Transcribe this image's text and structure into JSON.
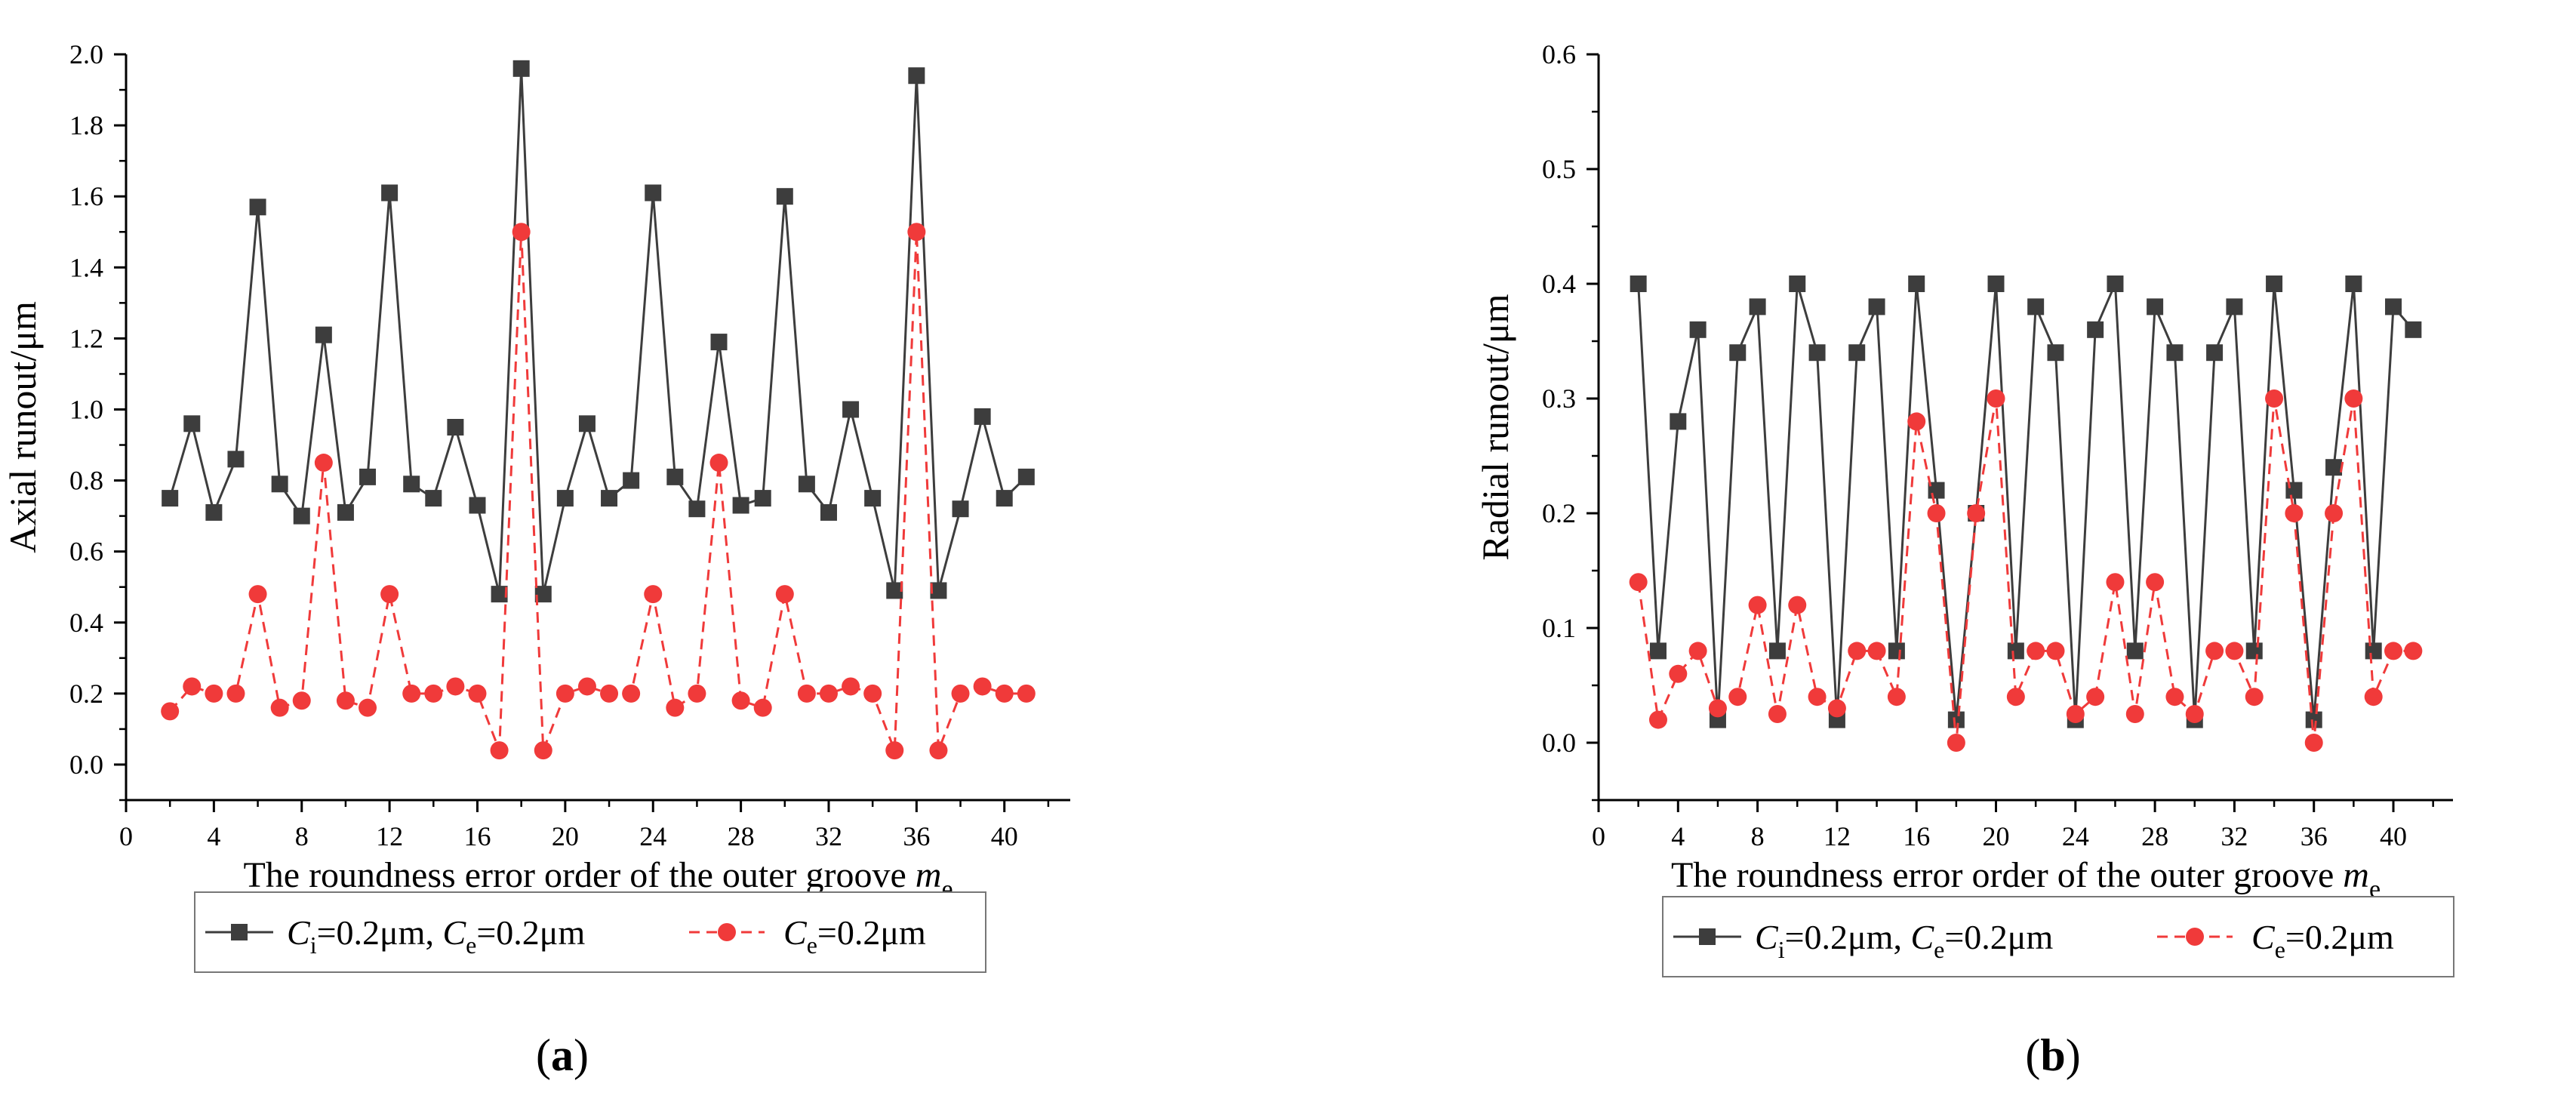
{
  "panel_labels": [
    "(a)",
    "(b)"
  ],
  "legend": {
    "series1_parts": [
      "C",
      "i",
      "=0.2μm, ",
      "C",
      "e",
      "=0.2μm"
    ],
    "series2_parts": [
      "C",
      "e",
      "=0.2μm"
    ]
  },
  "colors": {
    "series1": "#3d3d3d",
    "series2": "#f03a3a",
    "axis": "#000000"
  },
  "chart_data": [
    {
      "type": "line",
      "panel": "(a)",
      "xlabel": "The roundness error order of the outer groove",
      "xlabel_var": "m",
      "xlabel_sub": "e",
      "ylabel": "Axial runout/μm",
      "xlim": [
        0,
        43
      ],
      "ylim": [
        -0.1,
        2.0
      ],
      "xticks": [
        0,
        4,
        8,
        12,
        16,
        20,
        24,
        28,
        32,
        36,
        40
      ],
      "yticks": [
        0.0,
        0.2,
        0.4,
        0.6,
        0.8,
        1.0,
        1.2,
        1.4,
        1.6,
        1.8,
        2.0
      ],
      "ytick_labels": [
        "0.0",
        "0.2",
        "0.4",
        "0.6",
        "0.8",
        "1.0",
        "1.2",
        "1.4",
        "1.6",
        "1.8",
        "2.0"
      ],
      "x": [
        2,
        3,
        4,
        5,
        6,
        7,
        8,
        9,
        10,
        11,
        12,
        13,
        14,
        15,
        16,
        17,
        18,
        19,
        20,
        21,
        22,
        23,
        24,
        25,
        26,
        27,
        28,
        29,
        30,
        31,
        32,
        33,
        34,
        35,
        36,
        37,
        38,
        39,
        40,
        41
      ],
      "series": [
        {
          "values": [
            0.75,
            0.96,
            0.71,
            0.86,
            1.57,
            0.79,
            0.7,
            1.21,
            0.71,
            0.81,
            1.61,
            0.79,
            0.75,
            0.95,
            0.73,
            0.48,
            1.96,
            0.48,
            0.75,
            0.96,
            0.75,
            0.8,
            1.61,
            0.81,
            0.72,
            1.19,
            0.73,
            0.75,
            1.6,
            0.79,
            0.71,
            1.0,
            0.75,
            0.49,
            1.94,
            0.49,
            0.72,
            0.98,
            0.75,
            0.81
          ]
        },
        {
          "values": [
            0.15,
            0.22,
            0.2,
            0.2,
            0.48,
            0.16,
            0.18,
            0.85,
            0.18,
            0.16,
            0.48,
            0.2,
            0.2,
            0.22,
            0.2,
            0.04,
            1.5,
            0.04,
            0.2,
            0.22,
            0.2,
            0.2,
            0.48,
            0.16,
            0.2,
            0.85,
            0.18,
            0.16,
            0.48,
            0.2,
            0.2,
            0.22,
            0.2,
            0.04,
            1.5,
            0.04,
            0.2,
            0.22,
            0.2,
            0.2
          ]
        }
      ]
    },
    {
      "type": "line",
      "panel": "(b)",
      "xlabel": "The roundness error order of the outer groove",
      "xlabel_var": "m",
      "xlabel_sub": "e",
      "ylabel": "Radial runout/μm",
      "xlim": [
        0,
        43
      ],
      "ylim": [
        -0.05,
        0.6
      ],
      "xticks": [
        0,
        4,
        8,
        12,
        16,
        20,
        24,
        28,
        32,
        36,
        40
      ],
      "yticks": [
        0.0,
        0.1,
        0.2,
        0.3,
        0.4,
        0.5,
        0.6
      ],
      "ytick_labels": [
        "0.0",
        "0.1",
        "0.2",
        "0.3",
        "0.4",
        "0.5",
        "0.6"
      ],
      "x": [
        2,
        3,
        4,
        5,
        6,
        7,
        8,
        9,
        10,
        11,
        12,
        13,
        14,
        15,
        16,
        17,
        18,
        19,
        20,
        21,
        22,
        23,
        24,
        25,
        26,
        27,
        28,
        29,
        30,
        31,
        32,
        33,
        34,
        35,
        36,
        37,
        38,
        39,
        40,
        41
      ],
      "series": [
        {
          "values": [
            0.4,
            0.08,
            0.28,
            0.36,
            0.02,
            0.34,
            0.38,
            0.08,
            0.4,
            0.34,
            0.02,
            0.34,
            0.38,
            0.08,
            0.4,
            0.22,
            0.02,
            0.2,
            0.4,
            0.08,
            0.38,
            0.34,
            0.02,
            0.36,
            0.4,
            0.08,
            0.38,
            0.34,
            0.02,
            0.34,
            0.38,
            0.08,
            0.4,
            0.22,
            0.02,
            0.24,
            0.4,
            0.08,
            0.38,
            0.36
          ]
        },
        {
          "values": [
            0.14,
            0.02,
            0.06,
            0.08,
            0.03,
            0.04,
            0.12,
            0.025,
            0.12,
            0.04,
            0.03,
            0.08,
            0.08,
            0.04,
            0.28,
            0.2,
            0.0,
            0.2,
            0.3,
            0.04,
            0.08,
            0.08,
            0.025,
            0.04,
            0.14,
            0.025,
            0.14,
            0.04,
            0.025,
            0.08,
            0.08,
            0.04,
            0.3,
            0.2,
            0.0,
            0.2,
            0.3,
            0.04,
            0.08,
            0.08
          ]
        }
      ]
    }
  ]
}
